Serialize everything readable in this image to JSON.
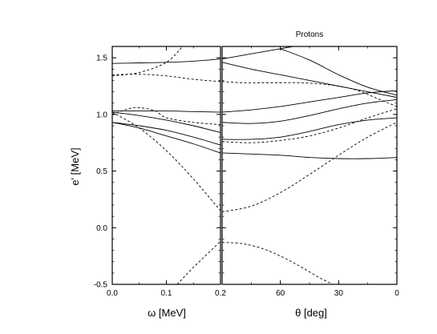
{
  "chart_data": [
    {
      "type": "line",
      "panel": "left",
      "title": "",
      "xlabel": "ω [MeV]",
      "ylabel": "e' [MeV]",
      "xlim": [
        0.0,
        0.2
      ],
      "ylim": [
        -0.5,
        1.6
      ],
      "xticks": [
        0.0,
        0.1,
        0.2
      ],
      "xtick_labels": [
        "0.0",
        "0.1",
        "0.2"
      ],
      "yticks": [
        -0.5,
        0.0,
        0.5,
        1.0,
        1.5
      ],
      "ytick_labels": [
        "-0.5",
        "0.0",
        "0.5",
        "1.0",
        "1.5"
      ],
      "grid": false,
      "series": [
        {
          "style": "solid",
          "x": [
            0.0,
            0.05,
            0.1,
            0.15,
            0.2
          ],
          "y": [
            1.45,
            1.455,
            1.46,
            1.47,
            1.49
          ]
        },
        {
          "style": "solid",
          "x": [
            0.0,
            0.05,
            0.1,
            0.15,
            0.2
          ],
          "y": [
            1.03,
            1.03,
            1.03,
            1.025,
            1.02
          ]
        },
        {
          "style": "solid",
          "x": [
            0.0,
            0.05,
            0.1,
            0.15,
            0.2
          ],
          "y": [
            1.02,
            0.99,
            0.95,
            0.9,
            0.84
          ]
        },
        {
          "style": "solid",
          "x": [
            0.0,
            0.05,
            0.1,
            0.15,
            0.2
          ],
          "y": [
            0.93,
            0.9,
            0.86,
            0.8,
            0.73
          ]
        },
        {
          "style": "solid",
          "x": [
            0.0,
            0.05,
            0.1,
            0.15,
            0.2
          ],
          "y": [
            0.93,
            0.88,
            0.81,
            0.74,
            0.66
          ]
        },
        {
          "style": "dashed",
          "x": [
            0.0,
            0.05,
            0.1,
            0.13
          ],
          "y": [
            1.34,
            1.37,
            1.46,
            1.6
          ]
        },
        {
          "style": "dashed",
          "x": [
            0.0,
            0.05,
            0.1,
            0.15,
            0.2
          ],
          "y": [
            1.35,
            1.355,
            1.34,
            1.31,
            1.29
          ]
        },
        {
          "style": "dashed",
          "x": [
            0.0,
            0.03,
            0.05,
            0.08,
            0.1,
            0.15,
            0.2
          ],
          "y": [
            1.0,
            1.05,
            1.06,
            1.03,
            0.97,
            0.93,
            0.91
          ]
        },
        {
          "style": "dashed",
          "x": [
            0.0,
            0.05,
            0.1,
            0.15,
            0.2
          ],
          "y": [
            1.02,
            0.88,
            0.68,
            0.43,
            0.15
          ]
        },
        {
          "style": "dashed",
          "x": [
            0.12,
            0.15,
            0.2
          ],
          "y": [
            -0.5,
            -0.35,
            -0.12
          ]
        }
      ]
    },
    {
      "type": "line",
      "panel": "right",
      "title": "Protons",
      "xlabel": "θ [deg]",
      "ylabel": "",
      "xlim": [
        90,
        0
      ],
      "ylim": [
        -0.5,
        1.6
      ],
      "xticks": [
        60,
        30,
        0
      ],
      "xtick_labels": [
        "60",
        "30",
        "0"
      ],
      "yticks": [
        -0.5,
        0.0,
        0.5,
        1.0,
        1.5
      ],
      "grid": false,
      "series": [
        {
          "style": "solid",
          "x": [
            90,
            80,
            70,
            60,
            50
          ],
          "y": [
            1.49,
            1.52,
            1.55,
            1.58,
            1.61
          ]
        },
        {
          "style": "solid",
          "x": [
            60,
            45,
            30,
            15,
            0
          ],
          "y": [
            1.58,
            1.48,
            1.35,
            1.24,
            1.17
          ]
        },
        {
          "style": "solid",
          "x": [
            90,
            75,
            60,
            45,
            30,
            15,
            0
          ],
          "y": [
            1.46,
            1.4,
            1.35,
            1.3,
            1.25,
            1.2,
            1.15
          ]
        },
        {
          "style": "solid",
          "x": [
            90,
            75,
            60,
            45,
            30,
            15,
            0
          ],
          "y": [
            1.02,
            1.04,
            1.07,
            1.11,
            1.15,
            1.19,
            1.21
          ]
        },
        {
          "style": "solid",
          "x": [
            90,
            75,
            60,
            45,
            30,
            15,
            0
          ],
          "y": [
            0.93,
            0.92,
            0.94,
            0.99,
            1.05,
            1.1,
            1.13
          ]
        },
        {
          "style": "solid",
          "x": [
            90,
            75,
            60,
            45,
            30,
            15,
            0
          ],
          "y": [
            0.78,
            0.78,
            0.8,
            0.85,
            0.91,
            0.95,
            0.97
          ]
        },
        {
          "style": "solid",
          "x": [
            90,
            75,
            60,
            45,
            30,
            15,
            0
          ],
          "y": [
            0.66,
            0.65,
            0.64,
            0.62,
            0.61,
            0.61,
            0.62
          ]
        },
        {
          "style": "dashed",
          "x": [
            90,
            80,
            70,
            60,
            50,
            40,
            30,
            20,
            10,
            0
          ],
          "y": [
            1.29,
            1.28,
            1.28,
            1.28,
            1.28,
            1.27,
            1.25,
            1.21,
            1.14,
            1.07
          ]
        },
        {
          "style": "dashed",
          "x": [
            90,
            75,
            60,
            45,
            30,
            15,
            0
          ],
          "y": [
            0.76,
            0.75,
            0.77,
            0.81,
            0.88,
            0.97,
            1.05
          ]
        },
        {
          "style": "dashed",
          "x": [
            90,
            75,
            60,
            45,
            30,
            15,
            0
          ],
          "y": [
            0.14,
            0.19,
            0.31,
            0.47,
            0.64,
            0.8,
            0.93
          ]
        },
        {
          "style": "dashed",
          "x": [
            90,
            80,
            70,
            60,
            50,
            40,
            33
          ],
          "y": [
            -0.13,
            -0.14,
            -0.18,
            -0.25,
            -0.34,
            -0.44,
            -0.5
          ]
        }
      ]
    }
  ]
}
